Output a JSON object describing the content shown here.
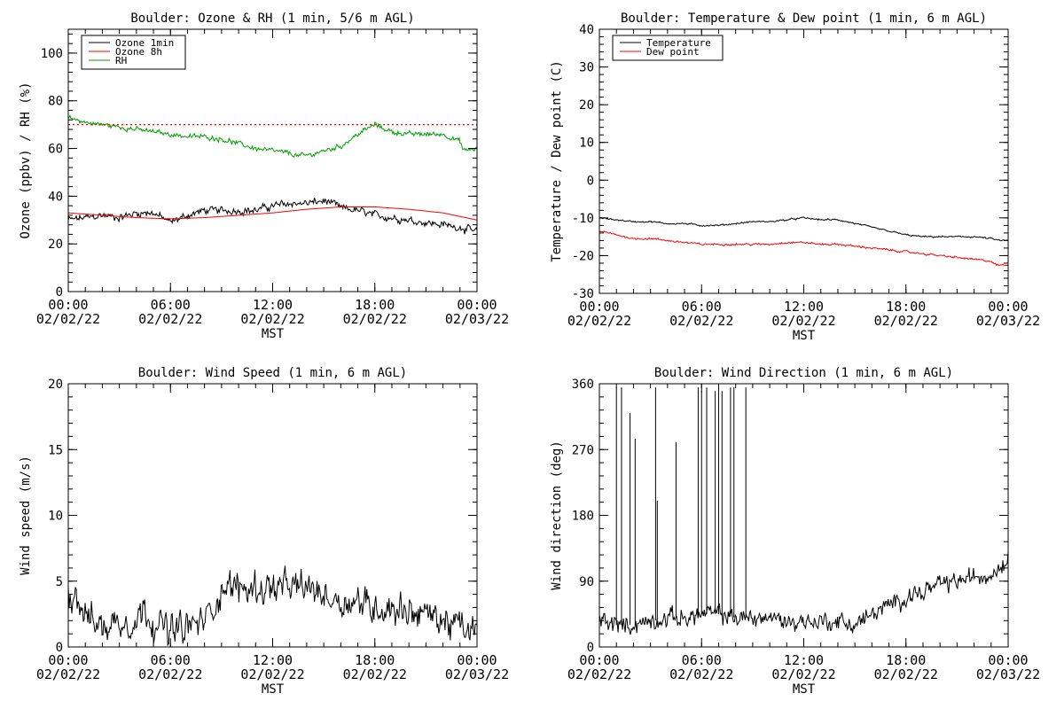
{
  "chart_data": [
    {
      "type": "line",
      "title": "Boulder: Ozone & RH (1 min, 5/6 m AGL)",
      "ylabel": "Ozone (ppbv) / RH (%)",
      "xlabel": "MST",
      "ylim": [
        0,
        110
      ],
      "yticks": [
        0,
        20,
        40,
        60,
        80,
        100
      ],
      "xlim": [
        0,
        24
      ],
      "xticks": [
        0,
        6,
        12,
        18,
        24
      ],
      "xtick_labels": [
        [
          "00:00",
          "02/02/22"
        ],
        [
          "06:00",
          "02/02/22"
        ],
        [
          "12:00",
          "02/02/22"
        ],
        [
          "18:00",
          "02/02/22"
        ],
        [
          "00:00",
          "02/03/22"
        ]
      ],
      "legend": "top-left",
      "reference_line": {
        "y": 70,
        "color": "#ff0000",
        "style": "dotted"
      },
      "series": [
        {
          "name": "Ozone 1min",
          "color": "#000000",
          "noise": 1.8,
          "x": [
            0,
            1,
            2,
            3,
            4,
            5,
            6,
            7,
            8,
            9,
            10,
            11,
            12,
            13,
            14,
            15,
            15.5,
            16,
            17,
            18,
            19,
            20,
            21,
            22,
            23,
            24
          ],
          "values": [
            30,
            31,
            32,
            31,
            33,
            33,
            29,
            32,
            34,
            34,
            34,
            34,
            36,
            37,
            37,
            38,
            37,
            35,
            34,
            32,
            31,
            30,
            29,
            28,
            27,
            25
          ]
        },
        {
          "name": "Ozone 8h",
          "color": "#ff0000",
          "noise": 0,
          "x": [
            0,
            2,
            4,
            6,
            8,
            10,
            12,
            14,
            16,
            18,
            20,
            22,
            24
          ],
          "values": [
            33,
            32,
            31,
            30.5,
            31,
            32,
            33,
            34.5,
            35.5,
            35.5,
            34.5,
            33,
            30
          ]
        },
        {
          "name": "RH",
          "color": "#00a000",
          "noise": 1.2,
          "x": [
            0,
            0.5,
            1,
            2,
            3,
            4,
            5,
            6,
            7,
            8,
            9,
            10,
            11,
            12,
            13,
            13.5,
            14,
            15,
            16,
            17,
            18,
            19,
            20,
            21,
            22,
            23,
            23.2,
            24
          ],
          "values": [
            73,
            72,
            71,
            70,
            69,
            68,
            67,
            66,
            65,
            65,
            64,
            62,
            60,
            59,
            58,
            57,
            57,
            59,
            61,
            66,
            70,
            67,
            66,
            66,
            66,
            63,
            59,
            60
          ]
        }
      ]
    },
    {
      "type": "line",
      "title": "Boulder: Temperature & Dew point (1 min, 6 m AGL)",
      "ylabel": "Temperature / Dew point (C)",
      "xlabel": "MST",
      "ylim": [
        -30,
        40
      ],
      "yticks": [
        -30,
        -20,
        -10,
        0,
        10,
        20,
        30,
        40
      ],
      "xlim": [
        0,
        24
      ],
      "xticks": [
        0,
        6,
        12,
        18,
        24
      ],
      "xtick_labels": [
        [
          "00:00",
          "02/02/22"
        ],
        [
          "06:00",
          "02/02/22"
        ],
        [
          "12:00",
          "02/02/22"
        ],
        [
          "18:00",
          "02/02/22"
        ],
        [
          "00:00",
          "02/03/22"
        ]
      ],
      "legend": "top-left",
      "series": [
        {
          "name": "Temperature",
          "color": "#000000",
          "noise": 0.25,
          "x": [
            0,
            1,
            2,
            3,
            4,
            5,
            6,
            7,
            8,
            9,
            10,
            11,
            12,
            13,
            14,
            15,
            16,
            17,
            18,
            19,
            20,
            21,
            22,
            23,
            23.5,
            24
          ],
          "values": [
            -10,
            -10.5,
            -11,
            -11,
            -11.5,
            -11.5,
            -12,
            -12,
            -11.5,
            -11,
            -11,
            -10.5,
            -10,
            -10.5,
            -10.5,
            -11.5,
            -12.5,
            -13.5,
            -14.5,
            -15,
            -15,
            -15,
            -15,
            -15.5,
            -16,
            -16
          ]
        },
        {
          "name": "Dew point",
          "color": "#ff0000",
          "noise": 0.3,
          "x": [
            0,
            1,
            2,
            3,
            4,
            5,
            6,
            7,
            8,
            9,
            10,
            11,
            12,
            13,
            14,
            15,
            16,
            17,
            18,
            19,
            20,
            21,
            22,
            23,
            23.3,
            24
          ],
          "values": [
            -13.5,
            -14.5,
            -15.5,
            -15.5,
            -16,
            -16.5,
            -17,
            -17,
            -17,
            -17,
            -17,
            -16.5,
            -16.5,
            -17,
            -17,
            -17.5,
            -18,
            -18.5,
            -19,
            -19.5,
            -20,
            -20.5,
            -21,
            -21.5,
            -22.5,
            -22.5
          ]
        }
      ]
    },
    {
      "type": "line",
      "title": "Boulder: Wind Speed (1 min, 6 m AGL)",
      "ylabel": "Wind speed (m/s)",
      "xlabel": "MST",
      "ylim": [
        0,
        20
      ],
      "yticks": [
        0,
        5,
        10,
        15,
        20
      ],
      "xlim": [
        0,
        24
      ],
      "xticks": [
        0,
        6,
        12,
        18,
        24
      ],
      "xtick_labels": [
        [
          "00:00",
          "02/02/22"
        ],
        [
          "06:00",
          "02/02/22"
        ],
        [
          "12:00",
          "02/02/22"
        ],
        [
          "18:00",
          "02/02/22"
        ],
        [
          "00:00",
          "02/03/22"
        ]
      ],
      "series": [
        {
          "name": "",
          "color": "#000000",
          "noise": 1.4,
          "x": [
            0,
            0.5,
            1,
            1.5,
            2,
            3,
            4,
            4.5,
            5,
            6,
            7,
            8,
            8.5,
            9,
            10,
            11,
            12,
            13,
            14,
            15,
            16,
            17,
            18,
            19,
            20,
            21,
            22,
            23,
            24
          ],
          "values": [
            4.5,
            4,
            2.5,
            2,
            1.5,
            2,
            2,
            3,
            2,
            1.2,
            1.5,
            2,
            3,
            4.5,
            4.5,
            4.5,
            4.5,
            4.5,
            4.5,
            4,
            3.5,
            3.5,
            3,
            3,
            2.8,
            2.5,
            2,
            1.5,
            1
          ]
        }
      ]
    },
    {
      "type": "line",
      "title": "Boulder: Wind Direction (1 min, 6 m AGL)",
      "ylabel": "Wind direction (deg)",
      "xlabel": "MST",
      "ylim": [
        0,
        360
      ],
      "yticks": [
        0,
        90,
        180,
        270,
        360
      ],
      "xlim": [
        0,
        24
      ],
      "xticks": [
        0,
        6,
        12,
        18,
        24
      ],
      "xtick_labels": [
        [
          "00:00",
          "02/02/22"
        ],
        [
          "06:00",
          "02/02/22"
        ],
        [
          "12:00",
          "02/02/22"
        ],
        [
          "18:00",
          "02/02/22"
        ],
        [
          "00:00",
          "02/03/22"
        ]
      ],
      "spikes": {
        "x": [
          1.0,
          1.3,
          1.8,
          2.1,
          3.3,
          3.4,
          4.5,
          5.8,
          6.0,
          6.3,
          6.8,
          7.0,
          7.2,
          7.7,
          7.9,
          8.6
        ],
        "values": [
          355,
          355,
          320,
          285,
          355,
          200,
          280,
          355,
          350,
          355,
          350,
          355,
          350,
          355,
          355,
          355
        ]
      },
      "series": [
        {
          "name": "",
          "color": "#000000",
          "noise": 14,
          "x": [
            0,
            1,
            2,
            3,
            4,
            5,
            6,
            7,
            8,
            9,
            10,
            11,
            12,
            13,
            14,
            15,
            16,
            17,
            18,
            19,
            20,
            21,
            22,
            23,
            23.5,
            24
          ],
          "values": [
            40,
            30,
            30,
            35,
            40,
            40,
            45,
            45,
            40,
            40,
            40,
            35,
            35,
            35,
            35,
            30,
            45,
            55,
            70,
            75,
            85,
            90,
            95,
            100,
            110,
            125
          ]
        }
      ]
    }
  ]
}
